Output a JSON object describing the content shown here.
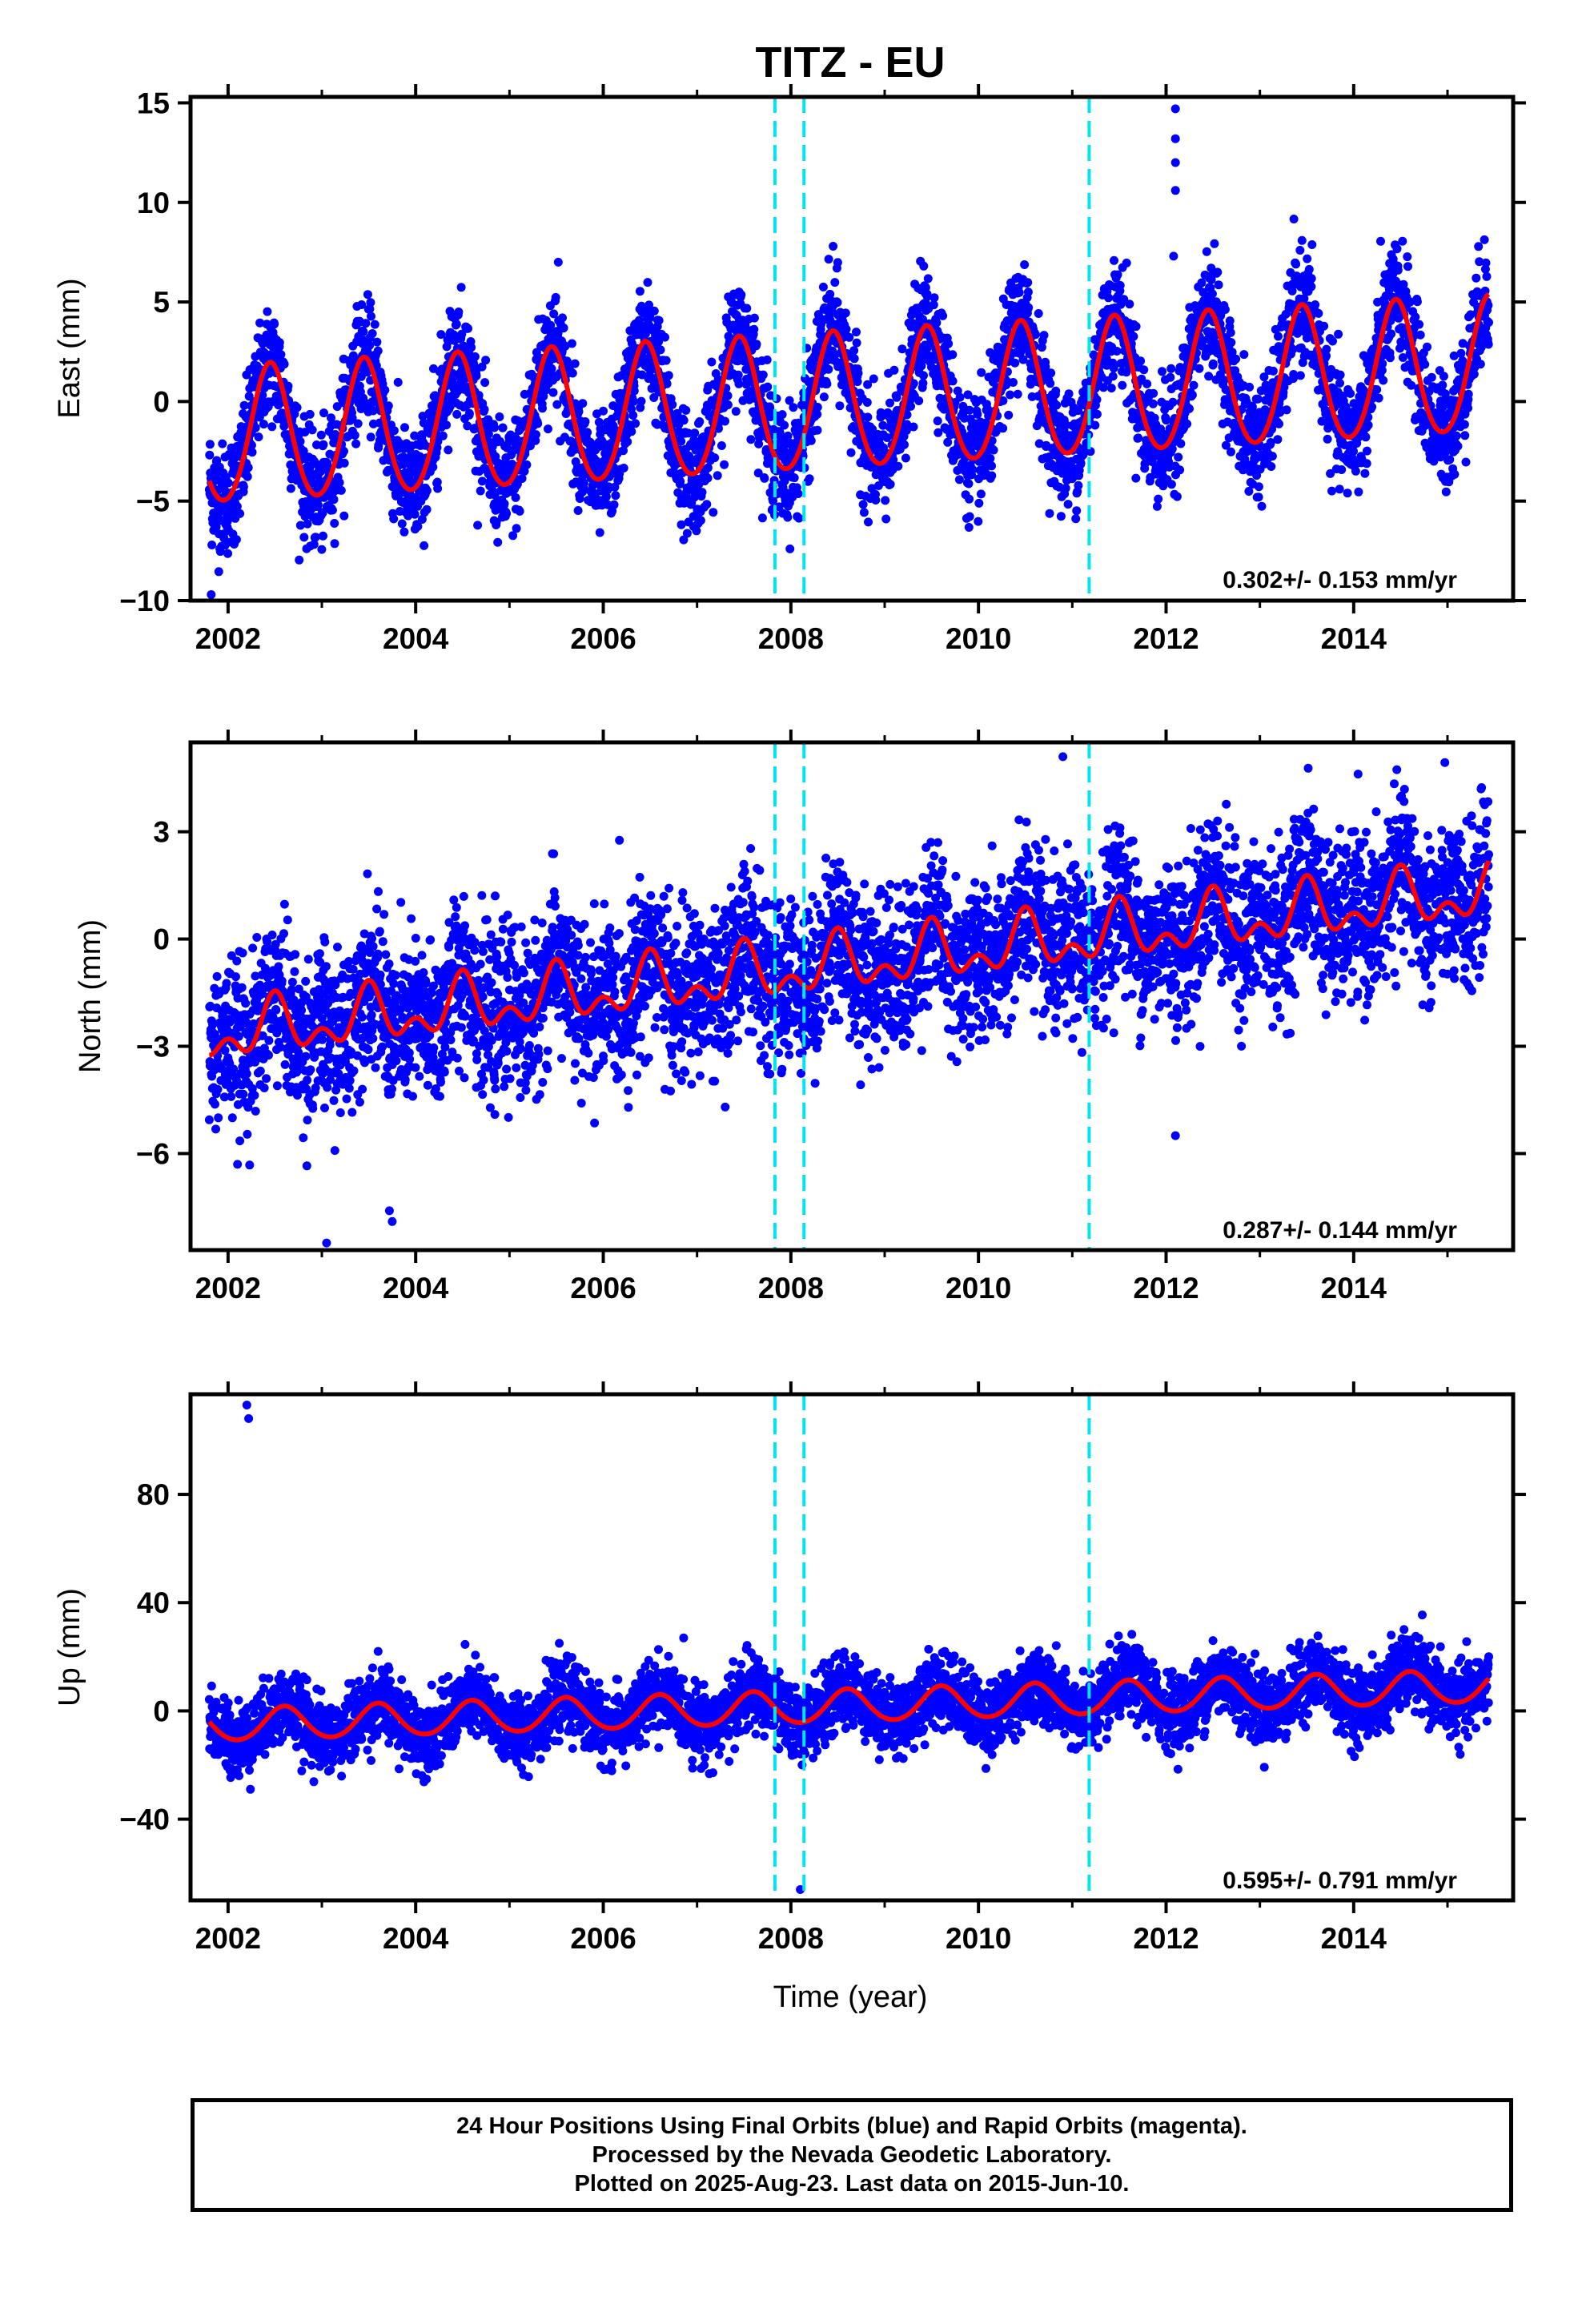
{
  "figure": {
    "title": "TITZ - EU",
    "caption": [
      "24 Hour Positions Using Final Orbits (blue) and Rapid Orbits (magenta).",
      "Processed by the Nevada Geodetic Laboratory.",
      "Plotted on 2025-Aug-23. Last data on 2015-Jun-10."
    ]
  },
  "colors": {
    "data": "#0000ff",
    "model": "#ff0000",
    "offsets": "#00e5ee",
    "frame": "#000000"
  },
  "chart_data": [
    {
      "type": "scatter",
      "title": "TITZ - EU",
      "ylabel": "East (mm)",
      "xlabel": "",
      "xlim": [
        2001.6,
        2015.7
      ],
      "ylim": [
        -10,
        15.3
      ],
      "xticks": [
        2002,
        2004,
        2006,
        2008,
        2010,
        2012,
        2014
      ],
      "xtick_labels": [
        "2002",
        "2004",
        "2006",
        "2008",
        "2010",
        "2012",
        "2014"
      ],
      "yticks": [
        -10,
        -5,
        0,
        5,
        10,
        15
      ],
      "ytick_labels": [
        "−10",
        "−5",
        "0",
        "5",
        "10",
        "15"
      ],
      "data_range": [
        2001.8,
        2015.44
      ],
      "model": {
        "name": "",
        "annual_amplitude": 3.4,
        "annual_peak": 0.45,
        "semiannual_amplitude": 0.3,
        "trend_start": -1.9,
        "trend_end": 1.7,
        "noise": 1.4
      },
      "offset_epochs": [
        2007.83,
        2008.14,
        2011.18
      ],
      "outliers": [
        [
          2012.1,
          14.7
        ],
        [
          2012.1,
          13.2
        ],
        [
          2012.1,
          12.0
        ],
        [
          2012.1,
          10.6
        ],
        [
          2012.08,
          7.3
        ],
        [
          2008.45,
          7.8
        ],
        [
          2001.82,
          -9.7
        ],
        [
          2005.52,
          7.0
        ]
      ],
      "rate": "0.302+/- 0.153 mm/yr",
      "grid": false
    },
    {
      "type": "scatter",
      "ylabel": "North (mm)",
      "xlabel": "",
      "xlim": [
        2001.6,
        2015.7
      ],
      "ylim": [
        -8.7,
        5.5
      ],
      "xticks": [
        2002,
        2004,
        2006,
        2008,
        2010,
        2012,
        2014
      ],
      "xtick_labels": [
        "2002",
        "2004",
        "2006",
        "2008",
        "2010",
        "2012",
        "2014"
      ],
      "yticks": [
        -6,
        -3,
        0,
        3
      ],
      "ytick_labels": [
        "−6",
        "−3",
        "0",
        "3"
      ],
      "data_range": [
        2001.8,
        2015.44
      ],
      "model": {
        "name": "",
        "annual_amplitude": 0.6,
        "annual_peak": 0.5,
        "semiannual_amplitude": 0.45,
        "trend_start": -2.7,
        "trend_end": 1.3,
        "noise": 1.1
      },
      "offset_epochs": [
        2007.83,
        2008.14,
        2011.18
      ],
      "outliers": [
        [
          2003.05,
          -8.5
        ],
        [
          2003.75,
          -7.9
        ],
        [
          2003.72,
          -7.6
        ],
        [
          2010.9,
          5.1
        ],
        [
          2012.1,
          -5.5
        ],
        [
          2007.3,
          -4.7
        ],
        [
          2009.2,
          -3.0
        ]
      ],
      "rate": "0.287+/- 0.144 mm/yr",
      "grid": false
    },
    {
      "type": "scatter",
      "ylabel": "Up (mm)",
      "xlabel": "Time (year)",
      "xlim": [
        2001.6,
        2015.7
      ],
      "ylim": [
        -70,
        117
      ],
      "xticks": [
        2002,
        2004,
        2006,
        2008,
        2010,
        2012,
        2014
      ],
      "xtick_labels": [
        "2002",
        "2004",
        "2006",
        "2008",
        "2010",
        "2012",
        "2014"
      ],
      "yticks": [
        -40,
        0,
        40,
        80
      ],
      "ytick_labels": [
        "−40",
        "0",
        "40",
        "80"
      ],
      "data_range": [
        2001.8,
        2015.44
      ],
      "model": {
        "name": "",
        "annual_amplitude": 6.0,
        "annual_peak": 0.6,
        "semiannual_amplitude": 0.5,
        "trend_start": -5.5,
        "trend_end": 9.0,
        "noise": 6.5
      },
      "offset_epochs": [
        2007.83,
        2008.14,
        2011.18
      ],
      "outliers": [
        [
          2002.2,
          113
        ],
        [
          2002.22,
          108
        ],
        [
          2008.1,
          -66
        ],
        [
          2003.6,
          22
        ],
        [
          2012.5,
          26
        ],
        [
          2014.4,
          28
        ]
      ],
      "rate": "0.595+/- 0.791 mm/yr",
      "grid": false
    }
  ]
}
